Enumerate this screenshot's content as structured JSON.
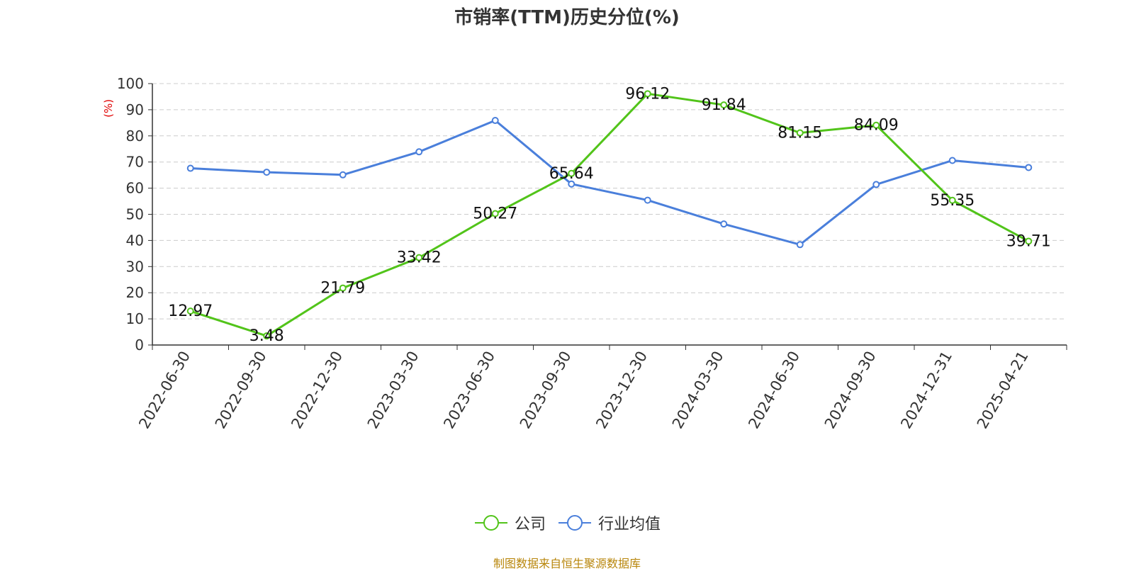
{
  "chart_data": {
    "type": "line",
    "title": "市销率(TTM)历史分位(%)",
    "ylabel": "(%)",
    "xlabel": "",
    "ylim": [
      0,
      100
    ],
    "yticks": [
      0,
      10,
      20,
      30,
      40,
      50,
      60,
      70,
      80,
      90,
      100
    ],
    "grid": true,
    "legend_position": "bottom",
    "categories": [
      "2022-06-30",
      "2022-09-30",
      "2022-12-30",
      "2023-03-30",
      "2023-06-30",
      "2023-09-30",
      "2023-12-30",
      "2024-03-30",
      "2024-06-30",
      "2024-09-30",
      "2024-12-31",
      "2025-04-21"
    ],
    "series": [
      {
        "name": "公司",
        "color": "#52c41a",
        "values": [
          12.97,
          3.48,
          21.79,
          33.42,
          50.27,
          65.64,
          96.12,
          91.84,
          81.15,
          84.09,
          55.35,
          39.71
        ],
        "labels": [
          "12.97",
          "3.48",
          "21.79",
          "33.42",
          "50.27",
          "65.64",
          "96.12",
          "91.84",
          "81.15",
          "84.09",
          "55.35",
          "39.71"
        ]
      },
      {
        "name": "行业均值",
        "color": "#4a7fdb",
        "values": [
          67.6,
          66.1,
          65.1,
          73.9,
          85.9,
          61.6,
          55.4,
          46.3,
          38.4,
          61.4,
          70.6,
          67.9
        ]
      }
    ]
  },
  "footer": {
    "source": "制图数据来自恒生聚源数据库"
  }
}
